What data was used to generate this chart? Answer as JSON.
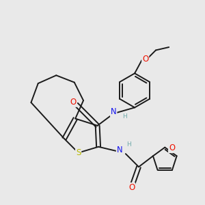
{
  "background_color": "#e9e9e9",
  "bond_color": "#1a1a1a",
  "atom_colors": {
    "S": "#b8b800",
    "O": "#ee1100",
    "N": "#1111ee",
    "H": "#70aaaa",
    "C": "#1a1a1a"
  },
  "figsize": [
    3.0,
    3.0
  ],
  "dpi": 100
}
